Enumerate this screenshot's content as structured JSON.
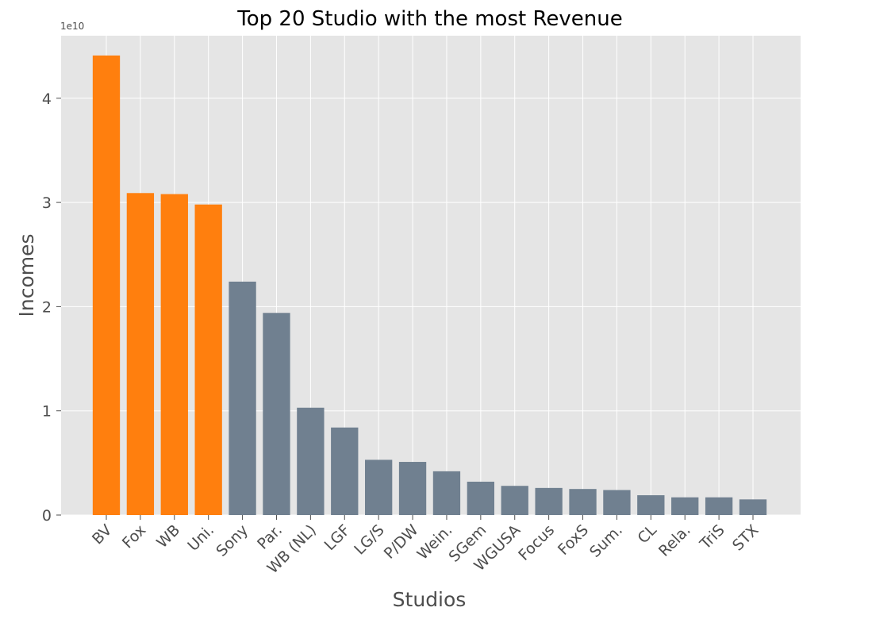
{
  "chart_data": {
    "type": "bar",
    "title": "Top 20 Studio with the most Revenue",
    "xlabel": "Studios",
    "ylabel": "Incomes",
    "y_offset_label": "1e10",
    "y_scale": 10000000000,
    "ylim": [
      0,
      4.6
    ],
    "yticks": [
      0,
      1,
      2,
      3,
      4
    ],
    "grid": true,
    "categories": [
      "BV",
      "Fox",
      "WB",
      "Uni.",
      "Sony",
      "Par.",
      "WB (NL)",
      "LGF",
      "LG/S",
      "P/DW",
      "Wein.",
      "SGem",
      "WGUSA",
      "Focus",
      "FoxS",
      "Sum.",
      "CL",
      "Rela.",
      "TriS",
      "STX"
    ],
    "values": [
      4.41,
      3.09,
      3.08,
      2.98,
      2.24,
      1.94,
      1.03,
      0.84,
      0.53,
      0.51,
      0.42,
      0.32,
      0.28,
      0.26,
      0.25,
      0.24,
      0.19,
      0.17,
      0.17,
      0.15
    ],
    "colors": {
      "highlight": "#ff7f0e",
      "default": "#708090",
      "background": "#e5e5e5",
      "grid": "#ffffff"
    },
    "highlight_count": 4
  }
}
